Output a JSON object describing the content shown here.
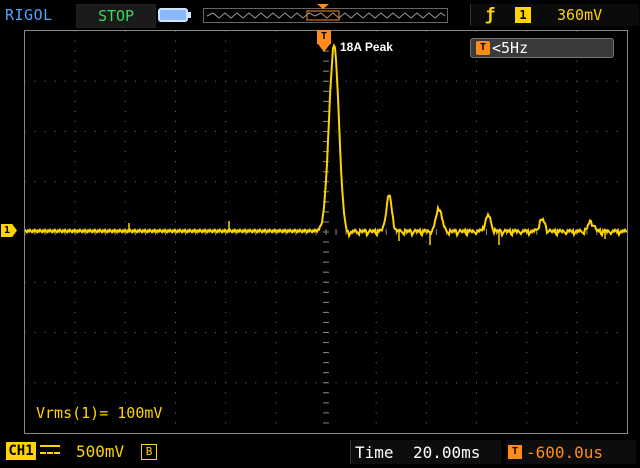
{
  "header": {
    "brand": "RIGOL",
    "run_state": "STOP",
    "trigger_edge_icon": "rising-edge-icon",
    "trigger_source": "1",
    "trigger_level": "360mV"
  },
  "screen": {
    "trigger_marker": "T",
    "channel_marker": "1",
    "annotation": "18A Peak",
    "freq_icon": "T",
    "frequency": "<5Hz",
    "measurement": "Vrms(1)= 100mV"
  },
  "footer": {
    "channel": "CH1",
    "channel_scale": "500mV",
    "bandwidth_limit": "B",
    "time_label": "Time",
    "time_base": "20.00ms",
    "offset_icon": "T",
    "trigger_offset": "-600.0us"
  },
  "colors": {
    "trace": "#ffd400",
    "trigger": "#ff8c1a",
    "run_state": "#33dd55",
    "brand": "#4ea3ff"
  }
}
